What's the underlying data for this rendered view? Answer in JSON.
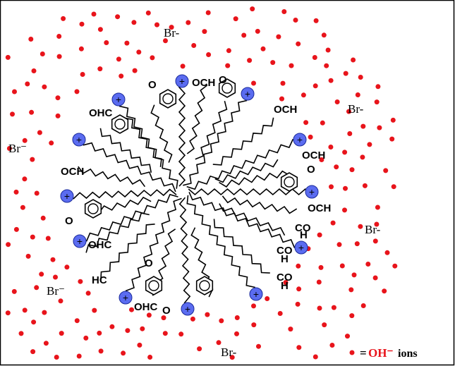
{
  "counter_ions": [
    "Br-",
    "Br-",
    "Br-",
    "Br-",
    "Br⁻",
    "Br⁻"
  ],
  "head_charge": "+",
  "group_labels": [
    "OHC",
    "O",
    "OCH",
    "O",
    "OCH",
    "OCH",
    "O",
    "OCH",
    "CO",
    "H",
    "CO",
    "H",
    "CO",
    "H",
    "OCH",
    "O",
    "OHC",
    "HC",
    "O",
    "OHC",
    "O"
  ],
  "legend": {
    "equals": "=",
    "ion": "OH⁻",
    "suffix": "ions"
  }
}
